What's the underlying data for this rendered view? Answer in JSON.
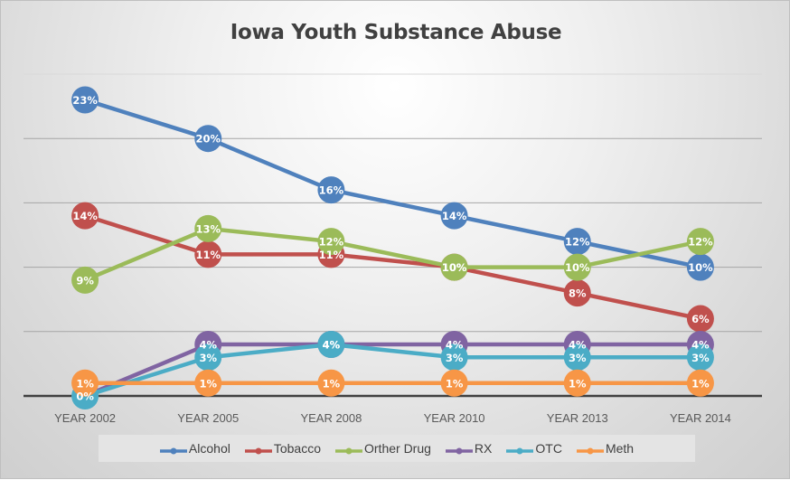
{
  "chart_data": {
    "type": "line",
    "title": "Iowa Youth Substance Abuse",
    "xlabel": "",
    "ylabel": "",
    "categories": [
      "YEAR 2002",
      "YEAR 2005",
      "YEAR 2008",
      "YEAR 2010",
      "YEAR 2013",
      "YEAR 2014"
    ],
    "ylim": [
      0,
      25
    ],
    "y_gridlines": [
      5,
      10,
      15,
      20,
      25
    ],
    "y_axis_labels_shown": false,
    "grid": true,
    "value_format": "percent",
    "legend_position": "bottom",
    "series": [
      {
        "name": "Alcohol",
        "color": "#4f81bd",
        "values": [
          23,
          20,
          16,
          14,
          12,
          10
        ]
      },
      {
        "name": "Tobacco",
        "color": "#c0504d",
        "values": [
          14,
          11,
          11,
          10,
          8,
          6
        ]
      },
      {
        "name": "Orther Drug",
        "color": "#9bbb59",
        "values": [
          9,
          13,
          12,
          10,
          10,
          12
        ]
      },
      {
        "name": "RX",
        "color": "#8064a2",
        "values": [
          0,
          4,
          4,
          4,
          4,
          4
        ]
      },
      {
        "name": "OTC",
        "color": "#4bacc6",
        "values": [
          0,
          3,
          4,
          3,
          3,
          3
        ]
      },
      {
        "name": "Meth",
        "color": "#f79646",
        "values": [
          1,
          1,
          1,
          1,
          1,
          1
        ]
      }
    ],
    "data_labels": [
      [
        "23%",
        "20%",
        "16%",
        "14%",
        "12%",
        "10%"
      ],
      [
        "14%",
        "11%",
        "11%",
        "10%",
        "8%",
        "6%"
      ],
      [
        "9%",
        "13%",
        "12%",
        "10%",
        "10%",
        "12%"
      ],
      [
        "",
        "4%",
        "4%",
        "4%",
        "4%",
        "4%"
      ],
      [
        "0%",
        "3%",
        "4%",
        "3%",
        "3%",
        "3%"
      ],
      [
        "1%",
        "1%",
        "1%",
        "1%",
        "1%",
        "1%"
      ]
    ]
  }
}
